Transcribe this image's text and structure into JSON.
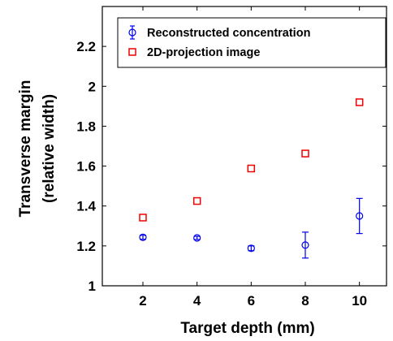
{
  "chart_data": {
    "type": "scatter",
    "xlabel": "Target depth (mm)",
    "ylabel_lines": [
      "Transverse margin",
      "(relative width)"
    ],
    "xlim": [
      0.5,
      11.0
    ],
    "ylim": [
      1.0,
      2.4
    ],
    "xticks": [
      2,
      4,
      6,
      8,
      10
    ],
    "yticks": [
      1,
      1.2,
      1.4,
      1.6,
      1.8,
      2,
      2.2
    ],
    "ytick_labels": [
      "1",
      "1.2",
      "1.4",
      "1.6",
      "1.8",
      "2",
      "2.2"
    ],
    "grid": false,
    "legend_position": "top-right",
    "series": [
      {
        "name": "Reconstructed concentration",
        "marker": "circle",
        "color": "#0000ee",
        "x": [
          2,
          4,
          6,
          8,
          10
        ],
        "y": [
          1.243,
          1.24,
          1.188,
          1.204,
          1.35
        ],
        "err": [
          0.01,
          0.008,
          0.012,
          0.065,
          0.088
        ]
      },
      {
        "name": "2D-projection image",
        "marker": "square",
        "color": "#ee0000",
        "x": [
          2,
          4,
          6,
          8,
          10
        ],
        "y": [
          1.342,
          1.425,
          1.588,
          1.663,
          1.92
        ]
      }
    ]
  }
}
